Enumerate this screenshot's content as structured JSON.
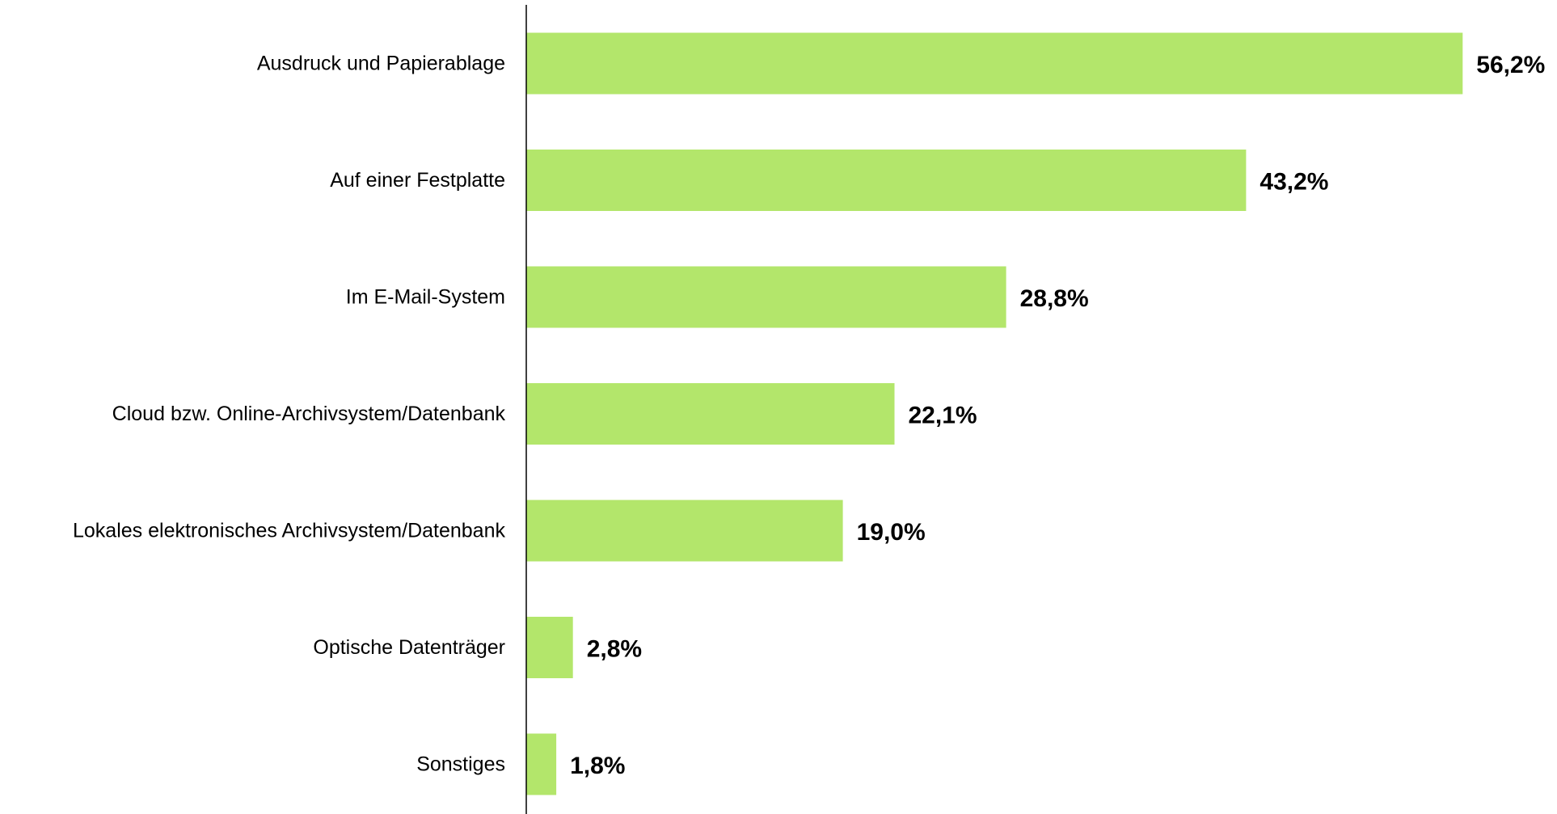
{
  "chart_data": {
    "type": "bar",
    "orientation": "horizontal",
    "categories": [
      "Ausdruck und Papierablage",
      "Auf einer Festplatte",
      "Im E-Mail-System",
      "Cloud bzw. Online-Archivsystem/Datenbank",
      "Lokales elektronisches Archivsystem/Datenbank",
      "Optische Datenträger",
      "Sonstiges"
    ],
    "values": [
      56.2,
      43.2,
      28.8,
      22.1,
      19.0,
      2.8,
      1.8
    ],
    "value_labels": [
      "56,2%",
      "43,2%",
      "28,8%",
      "22,1%",
      "19,0%",
      "2,8%",
      "1,8%"
    ],
    "unit": "%",
    "xlim": [
      0,
      60
    ],
    "grid": false,
    "legend": "none",
    "bar_color": "#b3e66b",
    "axis_color": "#000000"
  }
}
